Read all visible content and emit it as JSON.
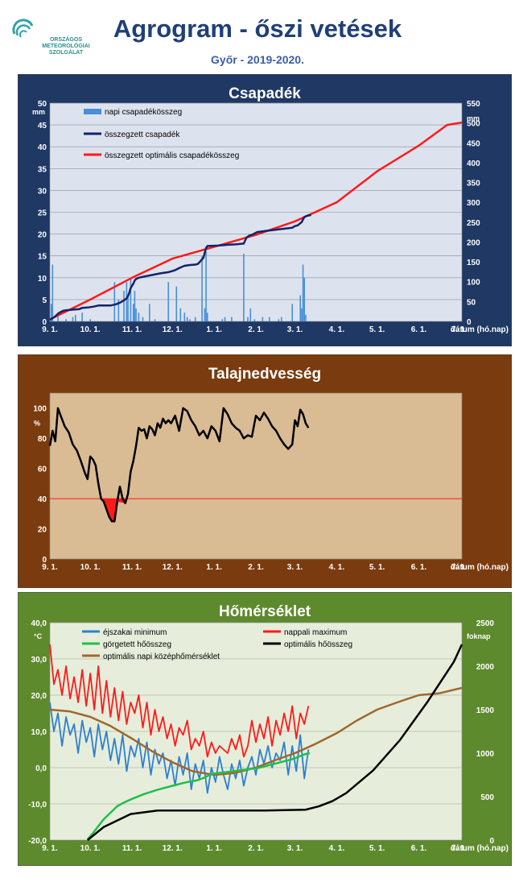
{
  "header": {
    "logo_lines": [
      "ORSZÁGOS",
      "METEOROLÓGIAI",
      "SZOLGÁLAT"
    ],
    "title": "Agrogram - őszi vetések",
    "subtitle": "Győr - 2019-2020."
  },
  "colors": {
    "panel1_bg": "#1f3864",
    "panel1_plot": "#dde3ee",
    "panel2_bg": "#7a3b0e",
    "panel2_plot": "#d9bb94",
    "panel3_bg": "#5e8a2e",
    "panel3_plot": "#e6eedb",
    "bar": "#4a8fd6",
    "navy": "#12236b",
    "red": "#ff1a1a",
    "blue_line": "#2e7fd0",
    "green_line": "#1fbf4a",
    "brown_line": "#a0672d",
    "black": "#000000"
  },
  "chart_data": [
    {
      "type": "bar+line",
      "title": "Csapadék",
      "ylabel": "mm",
      "y2label": "mm",
      "ylim": [
        0,
        50
      ],
      "y2lim": [
        0,
        550
      ],
      "yticks": [
        0,
        5,
        10,
        15,
        20,
        25,
        30,
        35,
        40,
        45,
        50
      ],
      "y2ticks": [
        0,
        50,
        100,
        150,
        200,
        250,
        300,
        350,
        400,
        450,
        500,
        550
      ],
      "xlim": [
        0,
        306
      ],
      "xticks": [
        "9. 1.",
        "10. 1.",
        "11. 1.",
        "12. 1.",
        "1. 1.",
        "2. 1.",
        "3. 1.",
        "4. 1.",
        "5. 1.",
        "6. 1.",
        "7. 1."
      ],
      "xtick_days": [
        0,
        30,
        61,
        91,
        122,
        153,
        182,
        213,
        243,
        274,
        304
      ],
      "xlabel": "dátum (hó.nap)",
      "legend": [
        "napi csapadékösszeg",
        "összegzett csapadék",
        "összegzett optimális csapadékösszeg"
      ],
      "daily_precip": {
        "days": [
          1,
          2,
          6,
          12,
          17,
          19,
          24,
          30,
          48,
          51,
          55,
          57,
          58,
          60,
          62,
          63,
          64,
          66,
          69,
          74,
          78,
          88,
          94,
          97,
          100,
          102,
          104,
          108,
          113,
          115,
          116,
          117,
          128,
          130,
          135,
          144,
          147,
          149,
          152,
          158,
          163,
          170,
          172,
          180,
          186,
          187,
          188,
          189,
          190
        ],
        "values": [
          4,
          13,
          2,
          0.5,
          1,
          1.5,
          2,
          0.5,
          9,
          5,
          7,
          9,
          6,
          10,
          4,
          7,
          3,
          2,
          1,
          4,
          0.5,
          9,
          8,
          3,
          2,
          1,
          0.5,
          1,
          15,
          3,
          16,
          2,
          0.5,
          1,
          1,
          15.5,
          1,
          3,
          0.5,
          1,
          1,
          0.5,
          1,
          4,
          6,
          3,
          13,
          10,
          1.5
        ]
      },
      "cumulative_precip": {
        "days": [
          0,
          3,
          7,
          10,
          12,
          18,
          22,
          24,
          28,
          32,
          36,
          45,
          49,
          52,
          55,
          57,
          58,
          59,
          60,
          62,
          63,
          64,
          66,
          70,
          76,
          82,
          88,
          93,
          97,
          100,
          104,
          108,
          110,
          114,
          116,
          117,
          125,
          132,
          138,
          144,
          146,
          148,
          150,
          154,
          160,
          165,
          170,
          175,
          180,
          182,
          184,
          187,
          189,
          191,
          194
        ],
        "values": [
          4,
          10,
          22,
          27,
          28,
          30,
          31,
          34,
          35,
          37,
          40,
          40,
          43,
          47,
          53,
          58,
          64,
          72,
          84,
          95,
          103,
          107,
          110,
          113,
          117,
          121,
          124,
          129,
          136,
          140,
          142,
          143,
          145,
          160,
          185,
          190,
          191,
          193,
          194,
          196,
          211,
          216,
          218,
          225,
          228,
          230,
          232,
          234,
          236,
          240,
          242,
          250,
          263,
          266,
          268
        ]
      },
      "optimal_cumulative": {
        "days": [
          0,
          30,
          61,
          91,
          122,
          153,
          182,
          213,
          243,
          274,
          295,
          306
        ],
        "values": [
          5,
          55,
          110,
          158,
          188,
          218,
          252,
          300,
          378,
          443,
          495,
          501
        ]
      }
    },
    {
      "type": "line",
      "title": "Talajnedvesség",
      "ylabel": "%",
      "ylim": [
        0,
        110
      ],
      "yticks": [
        0,
        20,
        40,
        60,
        80,
        100
      ],
      "threshold": 40,
      "xlim": [
        0,
        306
      ],
      "xticks": [
        "9. 1.",
        "10. 1.",
        "11. 1.",
        "12. 1.",
        "1. 1.",
        "2. 1.",
        "3. 1.",
        "4. 1.",
        "5. 1.",
        "6. 1.",
        "7. 1."
      ],
      "xtick_days": [
        0,
        30,
        61,
        91,
        122,
        153,
        182,
        213,
        243,
        274,
        304
      ],
      "xlabel": "dátum (hó.nap)",
      "soil_moisture": {
        "days": [
          0,
          2,
          4,
          6,
          8,
          11,
          14,
          17,
          20,
          23,
          26,
          28,
          30,
          32,
          34,
          36,
          38,
          40,
          42,
          44,
          46,
          48,
          50,
          52,
          54,
          56,
          58,
          60,
          62,
          64,
          66,
          68,
          70,
          72,
          74,
          76,
          78,
          80,
          82,
          84,
          86,
          88,
          90,
          93,
          96,
          99,
          102,
          105,
          108,
          111,
          114,
          117,
          120,
          123,
          126,
          129,
          132,
          135,
          138,
          141,
          144,
          147,
          150,
          153,
          156,
          159,
          162,
          165,
          168,
          171,
          174,
          177,
          180,
          182,
          184,
          186,
          188,
          190,
          192
        ],
        "values": [
          75,
          85,
          78,
          100,
          95,
          88,
          84,
          76,
          72,
          65,
          57,
          53,
          68,
          66,
          62,
          50,
          40,
          38,
          33,
          28,
          25,
          25,
          38,
          48,
          40,
          37,
          43,
          58,
          65,
          75,
          87,
          85,
          86,
          80,
          88,
          86,
          82,
          90,
          87,
          93,
          90,
          92,
          90,
          95,
          85,
          100,
          98,
          92,
          88,
          82,
          85,
          80,
          88,
          85,
          78,
          100,
          96,
          90,
          87,
          85,
          80,
          82,
          81,
          95,
          92,
          97,
          93,
          88,
          85,
          80,
          76,
          73,
          76,
          92,
          88,
          99,
          96,
          90,
          87
        ]
      }
    },
    {
      "type": "line",
      "title": "Hőmérséklet",
      "ylabel": "°C",
      "y2label": "foknap",
      "ylim": [
        -20,
        40
      ],
      "y2lim": [
        0,
        2500
      ],
      "yticks": [
        "-20,0",
        "-10,0",
        "0,0",
        "10,0",
        "20,0",
        "30,0",
        "40,0"
      ],
      "y2ticks": [
        0,
        500,
        1000,
        1500,
        2000,
        2500
      ],
      "xlim": [
        0,
        306
      ],
      "xticks": [
        "9. 1.",
        "10. 1.",
        "11. 1.",
        "12. 1.",
        "1. 1.",
        "2. 1.",
        "3. 1.",
        "4. 1.",
        "5. 1.",
        "6. 1.",
        "7. 1."
      ],
      "xtick_days": [
        0,
        30,
        61,
        91,
        122,
        153,
        182,
        213,
        243,
        274,
        304
      ],
      "xlabel": "dátum (hó.nap)",
      "legend": [
        "éjszakai minimum",
        "nappali maximum",
        "görgetett hőösszeg",
        "optimális hőösszeg",
        "optimális napi középhőmérséklet"
      ],
      "night_min": {
        "days": [
          0,
          3,
          6,
          9,
          12,
          15,
          18,
          21,
          24,
          27,
          30,
          33,
          36,
          39,
          42,
          45,
          48,
          51,
          54,
          57,
          60,
          63,
          66,
          69,
          72,
          75,
          78,
          81,
          84,
          87,
          90,
          93,
          96,
          99,
          102,
          105,
          108,
          111,
          114,
          117,
          120,
          123,
          126,
          129,
          132,
          135,
          138,
          141,
          144,
          147,
          150,
          153,
          156,
          159,
          162,
          165,
          168,
          171,
          174,
          177,
          180,
          183,
          186,
          189,
          192
        ],
        "values": [
          18,
          10,
          15,
          6,
          14,
          9,
          12,
          4,
          13,
          7,
          11,
          3,
          12,
          5,
          10,
          2,
          8,
          1,
          9,
          -1,
          6,
          3,
          8,
          0,
          7,
          -2,
          5,
          1,
          4,
          -3,
          2,
          -5,
          3,
          -2,
          4,
          -6,
          1,
          -3,
          2,
          -7,
          0,
          -4,
          3,
          -2,
          -6,
          1,
          -3,
          2,
          -5,
          0,
          3,
          -2,
          5,
          1,
          6,
          0,
          4,
          2,
          7,
          -2,
          6,
          -1,
          9,
          -3,
          5
        ]
      },
      "day_max": {
        "days": [
          0,
          3,
          6,
          9,
          12,
          15,
          18,
          21,
          24,
          27,
          30,
          33,
          36,
          39,
          42,
          45,
          48,
          51,
          54,
          57,
          60,
          63,
          66,
          69,
          72,
          75,
          78,
          81,
          84,
          87,
          90,
          93,
          96,
          99,
          102,
          105,
          108,
          111,
          114,
          117,
          120,
          123,
          126,
          129,
          132,
          135,
          138,
          141,
          144,
          147,
          150,
          153,
          156,
          159,
          162,
          165,
          168,
          171,
          174,
          177,
          180,
          183,
          186,
          189,
          192
        ],
        "values": [
          34,
          23,
          27,
          20,
          28,
          19,
          25,
          18,
          27,
          17,
          26,
          16,
          28,
          15,
          24,
          14,
          22,
          13,
          21,
          12,
          18,
          15,
          20,
          11,
          18,
          9,
          16,
          10,
          14,
          8,
          12,
          6,
          11,
          9,
          13,
          5,
          8,
          6,
          10,
          3,
          7,
          4,
          6,
          5,
          4,
          8,
          5,
          9,
          3,
          6,
          13,
          7,
          12,
          8,
          14,
          6,
          13,
          9,
          15,
          10,
          17,
          8,
          15,
          12,
          17
        ]
      },
      "rolling_heat_sum": {
        "days": [
          28,
          32,
          36,
          40,
          44,
          50,
          56,
          62,
          70,
          80,
          90,
          100,
          110,
          115,
          120,
          125,
          130,
          135,
          140,
          145,
          150,
          155,
          160,
          165,
          170,
          175,
          180,
          185,
          190,
          193
        ],
        "values": [
          10,
          80,
          160,
          240,
          300,
          390,
          440,
          480,
          530,
          580,
          620,
          660,
          690,
          720,
          760,
          770,
          780,
          790,
          800,
          810,
          820,
          830,
          850,
          870,
          890,
          910,
          930,
          960,
          990,
          1000
        ]
      },
      "optimal_heat_sum": {
        "days": [
          28,
          40,
          60,
          80,
          100,
          130,
          160,
          190,
          200,
          210,
          220,
          240,
          260,
          280,
          300,
          306
        ],
        "values": [
          0,
          150,
          300,
          340,
          340,
          340,
          340,
          350,
          390,
          450,
          540,
          800,
          1150,
          1580,
          2050,
          2250
        ]
      },
      "optimal_daily_mean": {
        "days": [
          0,
          15,
          30,
          45,
          61,
          76,
          91,
          106,
          122,
          137,
          153,
          167,
          182,
          197,
          213,
          228,
          243,
          258,
          274,
          289,
          306
        ],
        "values": [
          16,
          15.5,
          14,
          11.5,
          8,
          4.5,
          1.5,
          -1,
          -2,
          -1.5,
          0,
          2,
          4,
          6.5,
          9.5,
          13,
          16,
          18,
          20,
          20.5,
          22
        ]
      }
    }
  ]
}
